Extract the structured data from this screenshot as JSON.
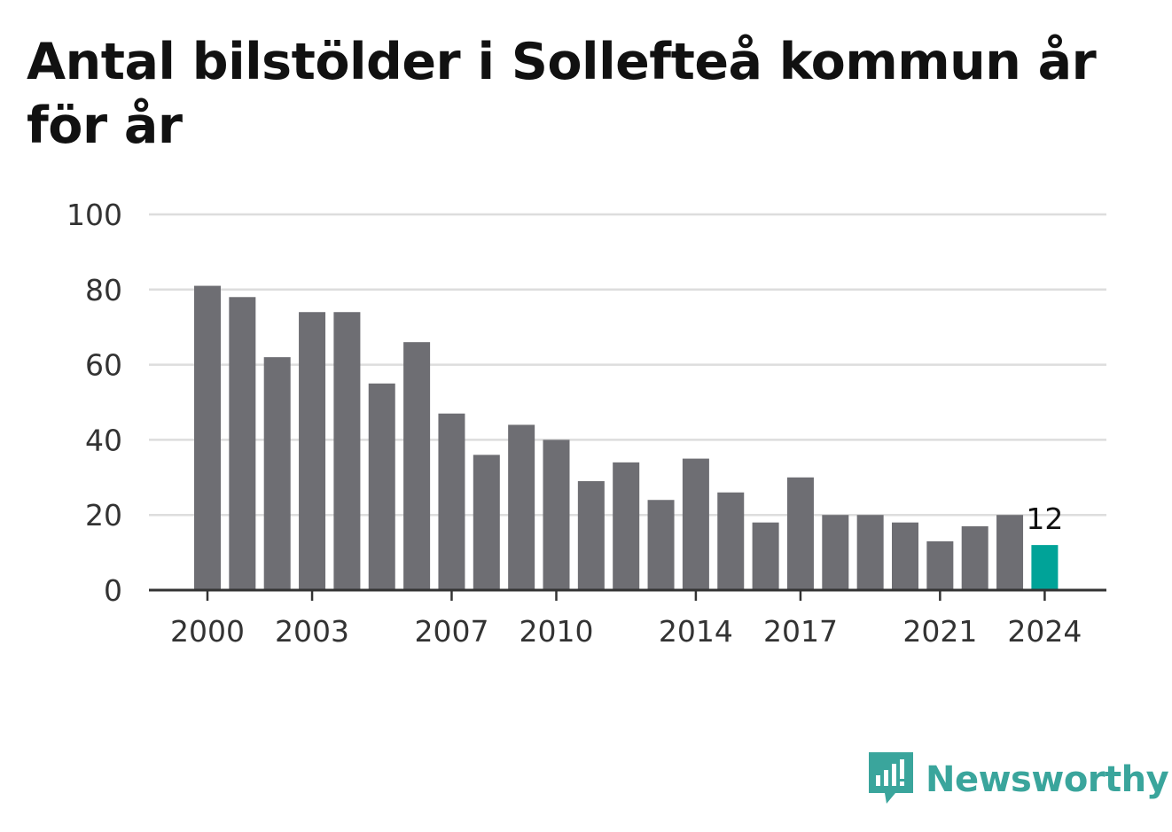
{
  "title": "Antal bilstölder i Sollefteå kommun år för år",
  "brand": {
    "name": "Newsworthy"
  },
  "colors": {
    "bar": "#6e6e73",
    "highlight": "#00a398",
    "grid": "#dddddd",
    "axis": "#333333",
    "brand": "#3aa59c"
  },
  "chart_data": {
    "type": "bar",
    "title": "Antal bilstölder i Sollefteå kommun år för år",
    "categories": [
      2000,
      2001,
      2002,
      2003,
      2004,
      2005,
      2006,
      2007,
      2008,
      2009,
      2010,
      2011,
      2012,
      2013,
      2014,
      2015,
      2016,
      2017,
      2018,
      2019,
      2020,
      2021,
      2022,
      2023,
      2024
    ],
    "values": [
      81,
      78,
      62,
      74,
      74,
      55,
      66,
      47,
      36,
      44,
      40,
      29,
      34,
      24,
      35,
      26,
      18,
      30,
      20,
      20,
      18,
      13,
      17,
      20,
      12
    ],
    "x_tick_labels": [
      "2000",
      "2003",
      "2007",
      "2010",
      "2014",
      "2017",
      "2021",
      "2024"
    ],
    "y_ticks": [
      0,
      20,
      40,
      60,
      80,
      100
    ],
    "ylim": [
      0,
      100
    ],
    "highlight": {
      "category": 2024,
      "label": "12"
    },
    "grid": true,
    "xlabel": "",
    "ylabel": ""
  }
}
